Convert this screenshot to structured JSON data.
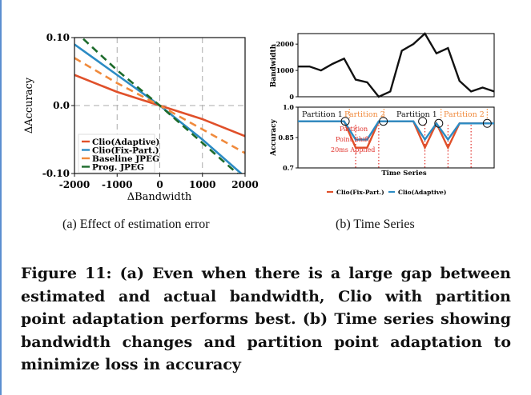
{
  "subfig_a": {
    "caption": "(a) Effect of estimation error",
    "chart_data": {
      "type": "line",
      "xlabel": "ΔBandwidth",
      "ylabel": "ΔAccuracy",
      "xlim": [
        -2000,
        2000
      ],
      "ylim": [
        -0.1,
        0.1
      ],
      "xticks": [
        -2000,
        -1000,
        0,
        1000,
        2000
      ],
      "xtick_labels": [
        "-2000",
        "-1000",
        "0",
        "1000",
        "2000"
      ],
      "yticks": [
        -0.1,
        0.0,
        0.1
      ],
      "ytick_labels": [
        "-0.10",
        "0.0",
        "0.10"
      ],
      "legend_position": "bottom-left",
      "series": [
        {
          "name": "Clio(Adaptive)",
          "color": "#e0502a",
          "style": "solid",
          "x": [
            -2000,
            -1000,
            0,
            1000,
            2000
          ],
          "y": [
            0.045,
            0.02,
            0.0,
            -0.02,
            -0.045
          ]
        },
        {
          "name": "Clio(Fix-Part.)",
          "color": "#2b8bc4",
          "style": "solid",
          "x": [
            -2000,
            -1000,
            0,
            1000,
            2000
          ],
          "y": [
            0.09,
            0.045,
            0.0,
            -0.05,
            -0.105
          ]
        },
        {
          "name": "Baseline JPEG",
          "color": "#f08a3c",
          "style": "dashed",
          "x": [
            -2000,
            -1000,
            0,
            1000,
            2000
          ],
          "y": [
            0.07,
            0.033,
            0.0,
            -0.035,
            -0.07
          ]
        },
        {
          "name": "Prog. JPEG",
          "color": "#1d6b2c",
          "style": "dashed",
          "x": [
            -2000,
            -1000,
            0,
            1000,
            2000
          ],
          "y": [
            0.11,
            0.052,
            0.0,
            -0.055,
            -0.11
          ]
        }
      ]
    }
  },
  "subfig_b": {
    "caption": "(b) Time Series",
    "chart_data": [
      {
        "type": "line",
        "ylabel": "Bandwidth",
        "yticks": [
          0,
          1000,
          2000
        ],
        "ytick_labels": [
          "0",
          "1000",
          "2000"
        ],
        "ylim": [
          0,
          2400
        ],
        "x": [
          0,
          1,
          2,
          3,
          4,
          5,
          6,
          7,
          8,
          9,
          10,
          11,
          12,
          13,
          14,
          15,
          16,
          17
        ],
        "y": [
          1150,
          1150,
          1000,
          1250,
          1450,
          650,
          550,
          0,
          200,
          1750,
          2000,
          2400,
          1650,
          1850,
          600,
          200,
          350,
          200
        ],
        "color": "#111111"
      },
      {
        "type": "line",
        "ylabel": "Accuracy",
        "xlabel": "Time Series",
        "yticks": [
          0.7,
          0.85,
          1.0
        ],
        "ytick_labels": [
          "0.7",
          "0.85",
          "1.0"
        ],
        "ylim": [
          0.7,
          1.0
        ],
        "partitions": [
          "Partition 1",
          "Partition 2",
          "Partition 1",
          "Partition 2"
        ],
        "annotation": [
          "Partition",
          "Point Shift",
          "20ms Applied"
        ],
        "legend": [
          "Clio(Fix-Part.)",
          "Clio(Adaptive)"
        ],
        "series": [
          {
            "name": "Clio(Fix-Part.)",
            "color": "#e0502a",
            "y": [
              0.93,
              0.93,
              0.93,
              0.93,
              0.93,
              0.8,
              0.8,
              0.93,
              0.93,
              0.93,
              0.93,
              0.8,
              0.92,
              0.8,
              0.92,
              0.92,
              0.92,
              0.92
            ]
          },
          {
            "name": "Clio(Adaptive)",
            "color": "#2b8bc4",
            "y": [
              0.93,
              0.93,
              0.93,
              0.93,
              0.93,
              0.84,
              0.84,
              0.93,
              0.93,
              0.93,
              0.93,
              0.84,
              0.92,
              0.84,
              0.92,
              0.92,
              0.92,
              0.92
            ]
          }
        ]
      }
    ]
  },
  "figure_caption": "Figure 11: (a) Even when there is a large gap between estimated and actual bandwidth, Clio with partition point adaptation performs best. (b) Time series showing bandwidth changes and partition point adaptation to minimize loss in accuracy"
}
